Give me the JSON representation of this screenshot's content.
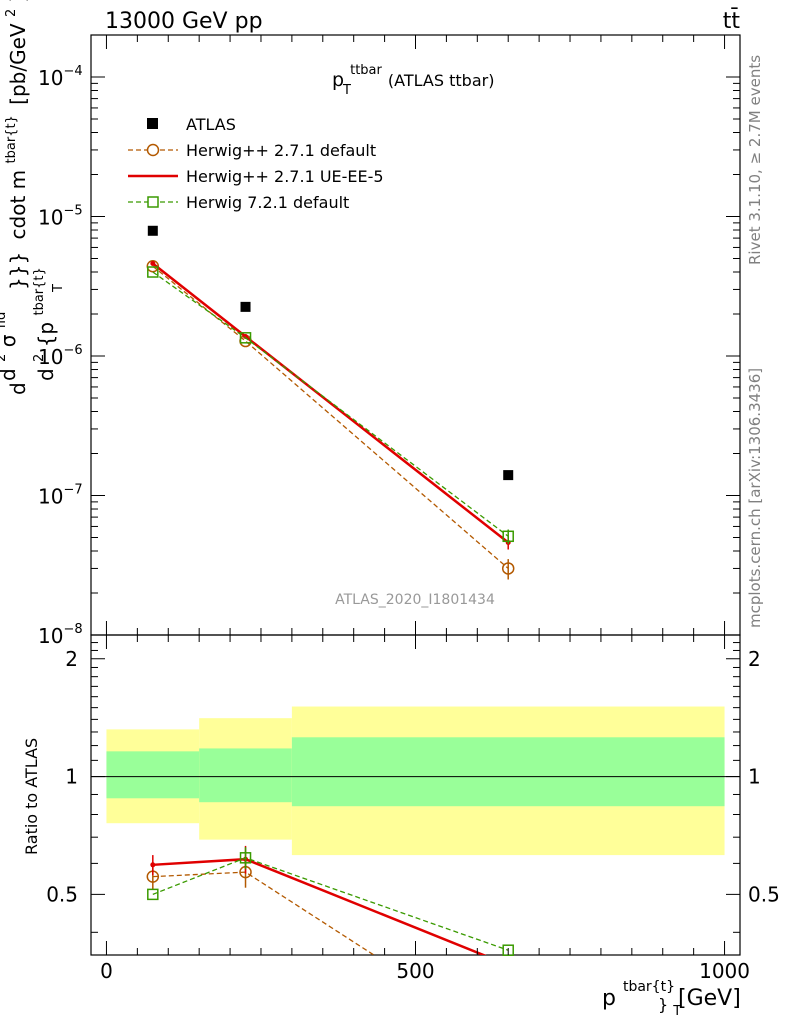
{
  "header": {
    "energy_label": "13000 GeV pp",
    "process_label": "tt̄"
  },
  "plot_title": {
    "main": "p",
    "sup": "ttbar",
    "sub": "T",
    "suffix": " (ATLAS ttbar)"
  },
  "analysis_watermark": "ATLAS_2020_I1801434",
  "side_labels": {
    "rivet": "Rivet 3.1.10, ≥ 2.7M events",
    "mcplots": "mcplots.cern.ch [arXiv:1306.3436]"
  },
  "main_ylabel": {
    "parts": [
      "d",
      "d",
      "2",
      "σ",
      "fid",
      "d",
      "2",
      "{p",
      "tbar{t}",
      "}}}",
      "cdot m",
      "tbar{t}",
      "[pb/GeV",
      "2",
      "]"
    ]
  },
  "ratio_ylabel": "Ratio to ATLAS",
  "xlabel": {
    "main": "p",
    "sup": "tbar{t}",
    "sub_brace": "}",
    "sub": "T",
    "unit": " [GeV]"
  },
  "main_yticks": [
    {
      "base": "10",
      "exp": "−4"
    },
    {
      "base": "10",
      "exp": "−5"
    },
    {
      "base": "10",
      "exp": "−6"
    },
    {
      "base": "10",
      "exp": "−7"
    },
    {
      "base": "10",
      "exp": "−8"
    }
  ],
  "ratio_yticks": [
    "2",
    "1",
    "0.5"
  ],
  "xticks": [
    "0",
    "500",
    "1000"
  ],
  "legend": [
    {
      "label": "ATLAS",
      "color": "#000000",
      "style": "marker-square"
    },
    {
      "label": "Herwig++ 2.7.1 default",
      "color": "#b35900",
      "style": "dashed-circle"
    },
    {
      "label": "Herwig++ 2.7.1 UE-EE-5",
      "color": "#e00000",
      "style": "solid"
    },
    {
      "label": "Herwig 7.2.1 default",
      "color": "#3a9a00",
      "style": "dashed-square"
    }
  ],
  "chart_data": {
    "type": "line",
    "x_scale": "linear",
    "xlim": [
      -25,
      1025
    ],
    "main_ylim": [
      1e-08,
      0.0002
    ],
    "main_yscale": "log",
    "ratio_ylim": [
      0.35,
      2.3
    ],
    "ratio_yscale": "log",
    "bins": [
      [
        0,
        150
      ],
      [
        150,
        300
      ],
      [
        300,
        1000
      ]
    ],
    "x": [
      75,
      225,
      650
    ],
    "series": [
      {
        "name": "ATLAS",
        "values": [
          7.9e-06,
          2.25e-06,
          1.4e-07
        ]
      },
      {
        "name": "Herwig++ 2.7.1 default",
        "values": [
          4.4e-06,
          1.28e-06,
          3e-08
        ],
        "errors": [
          0.0,
          0.0,
          5e-09
        ]
      },
      {
        "name": "Herwig++ 2.7.1 UE-EE-5",
        "values": [
          4.6e-06,
          1.38e-06,
          4.6e-08
        ],
        "errors": [
          0.0,
          0.0,
          5e-09
        ]
      },
      {
        "name": "Herwig 7.2.1 default",
        "values": [
          4e-06,
          1.35e-06,
          5.1e-08
        ],
        "errors": [
          0.0,
          0.0,
          6e-09
        ]
      }
    ],
    "ratio_series": [
      {
        "name": "Herwig++ 2.7.1 default",
        "values": [
          0.555,
          0.57,
          0.21
        ],
        "errors": [
          0.04,
          0.05,
          0.0
        ]
      },
      {
        "name": "Herwig++ 2.7.1 UE-EE-5",
        "values": [
          0.595,
          0.615,
          0.33
        ],
        "errors": [
          0.035,
          0.05,
          0.0
        ]
      },
      {
        "name": "Herwig 7.2.1 default",
        "values": [
          0.5,
          0.62,
          0.36
        ],
        "errors": [
          0.0,
          0.04,
          0.0
        ]
      }
    ],
    "uncertainty_bands": [
      {
        "bin": [
          0,
          150
        ],
        "inner": [
          0.88,
          1.16
        ],
        "outer": [
          0.76,
          1.32
        ]
      },
      {
        "bin": [
          150,
          300
        ],
        "inner": [
          0.86,
          1.18
        ],
        "outer": [
          0.69,
          1.41
        ]
      },
      {
        "bin": [
          300,
          1000
        ],
        "inner": [
          0.84,
          1.26
        ],
        "outer": [
          0.63,
          1.51
        ]
      }
    ],
    "band_colors": {
      "inner": "#99ff99",
      "outer": "#ffff99"
    }
  }
}
